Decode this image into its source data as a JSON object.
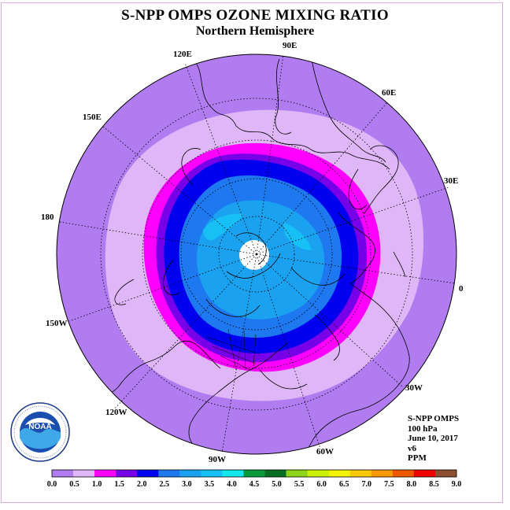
{
  "title": "S-NPP OMPS OZONE MIXING RATIO",
  "subtitle": "Northern Hemisphere",
  "longitude_labels": [
    "90E",
    "60E",
    "30E",
    "0",
    "30W",
    "60W",
    "90W",
    "120W",
    "150W",
    "180",
    "150E",
    "120E"
  ],
  "info": {
    "instrument": "S-NPP OMPS",
    "level": "100 hPa",
    "date": "June 10, 2017",
    "version": "v6",
    "units": "PPM"
  },
  "colorbar": {
    "ticks": [
      "0.0",
      "0.5",
      "1.0",
      "1.5",
      "2.0",
      "2.5",
      "3.0",
      "3.5",
      "4.0",
      "4.5",
      "5.0",
      "5.5",
      "6.0",
      "6.5",
      "7.0",
      "7.5",
      "8.0",
      "8.5",
      "9.0"
    ],
    "colors": [
      "#b07cf0",
      "#dfb6f8",
      "#ff00ff",
      "#7700e8",
      "#0000ee",
      "#1e78f0",
      "#1aa2f0",
      "#16c0f4",
      "#14e8ec",
      "#0a9a3e",
      "#0a6e22",
      "#8fd41a",
      "#c8f000",
      "#f4f400",
      "#f8c800",
      "#f89800",
      "#f05800",
      "#ee0000",
      "#8a5030"
    ]
  },
  "logo": {
    "text": "NOAA"
  }
}
